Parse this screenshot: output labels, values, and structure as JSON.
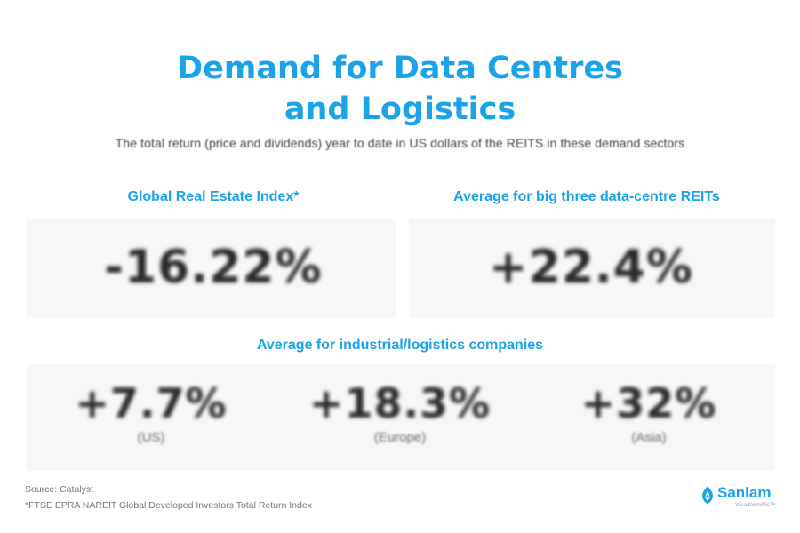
{
  "title": {
    "line1": "Demand for Data Centres",
    "line2": "and Logistics"
  },
  "subtitle": "The total return (price and dividends) year to date in US dollars of the REITS in these demand sectors",
  "global_index": {
    "label": "Global Real Estate Index*",
    "value": "-16.22%"
  },
  "data_centre": {
    "label": "Average for big three data-centre REITs",
    "value": "+22.4%"
  },
  "industrial": {
    "label": "Average for industrial/logistics companies",
    "items": [
      {
        "value": "+7.7%",
        "region": "(US)"
      },
      {
        "value": "+18.3%",
        "region": "(Europe)"
      },
      {
        "value": "+32%",
        "region": "(Asia)"
      }
    ]
  },
  "footer": {
    "source": "Source: Catalyst",
    "footnote": "*FTSE EPRA NAREIT Global Developed Investors Total Return Index"
  },
  "logo": {
    "name": "Sanlam",
    "sub": "Wealthsmiths™"
  },
  "colors": {
    "accent": "#1aa3e8",
    "value_text": "#2a2a2a",
    "panel_bg": "#f7f7f7"
  }
}
